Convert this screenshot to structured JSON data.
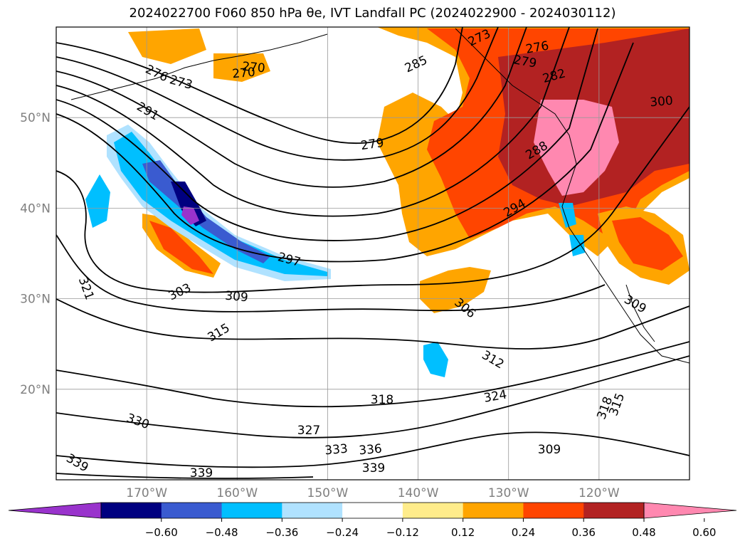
{
  "chart_data": {
    "type": "heatmap",
    "title": "2024022700 F060 850 hPa θe, IVT Landfall PC (2024022900 - 2024030112)",
    "lat_ticks": [
      "50°N",
      "40°N",
      "30°N",
      "20°N"
    ],
    "lon_ticks": [
      "170°W",
      "160°W",
      "150°W",
      "140°W",
      "130°W",
      "120°W"
    ],
    "grid": true,
    "extent": {
      "lon_min": -180,
      "lon_max": -110,
      "lat_min": 10,
      "lat_max": 60
    },
    "colorbar": {
      "orientation": "horizontal",
      "extend": "both",
      "levels": [
        -0.72,
        -0.6,
        -0.48,
        -0.36,
        -0.24,
        -0.12,
        0.12,
        0.24,
        0.36,
        0.48,
        0.6,
        0.72
      ],
      "tick_values": [
        "-0.60",
        "-0.48",
        "-0.36",
        "-0.24",
        "-0.12",
        "0.12",
        "0.24",
        "0.36",
        "0.48",
        "0.60"
      ],
      "colors": [
        "#9933cc",
        "#000080",
        "#3a5bd0",
        "#00bfff",
        "#b0e2ff",
        "#ffffff",
        "#ffec8b",
        "#ffa500",
        "#ff4500",
        "#b22222",
        "#ff88b0"
      ]
    },
    "contour_labels": [
      "276",
      "273",
      "270",
      "291",
      "279",
      "285",
      "273",
      "270",
      "279",
      "276",
      "282",
      "300",
      "288",
      "294",
      "297",
      "303",
      "309",
      "315",
      "306",
      "312",
      "321",
      "318",
      "324",
      "330",
      "327",
      "333",
      "336",
      "339",
      "339",
      "339",
      "309",
      "309",
      "318",
      "315"
    ]
  }
}
